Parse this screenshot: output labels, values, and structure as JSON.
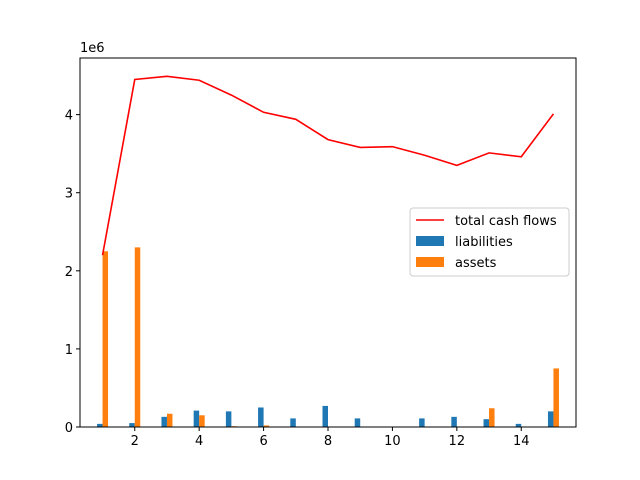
{
  "chart_data": {
    "type": "bar",
    "title": "",
    "xlabel": "",
    "ylabel": "",
    "y_offset_label": "1e6",
    "xlim": [
      0.3,
      15.7
    ],
    "ylim": [
      0,
      4725000
    ],
    "x_ticks": [
      2,
      4,
      6,
      8,
      10,
      12,
      14
    ],
    "y_ticks": [
      0,
      1,
      2,
      3,
      4
    ],
    "y_tick_scale": 1000000,
    "grid": false,
    "legend_position": "center-right",
    "x": [
      1,
      2,
      3,
      4,
      5,
      6,
      7,
      8,
      9,
      10,
      11,
      12,
      13,
      14,
      15
    ],
    "series": [
      {
        "name": "total cash flows",
        "kind": "line",
        "color": "#ff0000",
        "values": [
          2200000,
          4450000,
          4490000,
          4440000,
          4250000,
          4030000,
          3940000,
          3680000,
          3580000,
          3590000,
          3480000,
          3350000,
          3510000,
          3460000,
          4010000
        ]
      },
      {
        "name": "liabilities",
        "kind": "bar",
        "color": "#1f77b4",
        "values": [
          40000,
          50000,
          130000,
          210000,
          200000,
          250000,
          110000,
          270000,
          110000,
          0,
          110000,
          130000,
          100000,
          40000,
          200000
        ]
      },
      {
        "name": "assets",
        "kind": "bar",
        "color": "#ff7f0e",
        "values": [
          2250000,
          2300000,
          170000,
          150000,
          10000,
          20000,
          0,
          0,
          0,
          0,
          0,
          0,
          240000,
          0,
          750000
        ]
      }
    ]
  }
}
